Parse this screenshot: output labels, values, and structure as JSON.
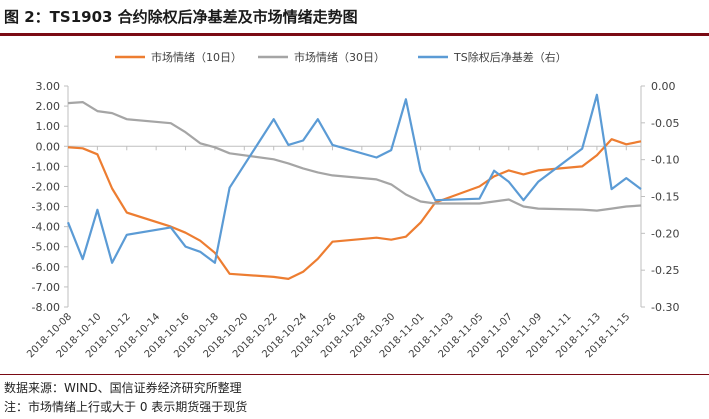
{
  "figure": {
    "title": "图 2：TS1903 合约除权后净基差及市场情绪走势图",
    "source_note": "数据来源：WIND、国信证券经济研究所整理",
    "footnote": "注：市场情绪上行或大于 0 表示期货强于现货"
  },
  "chart_data": {
    "type": "line",
    "title": "",
    "xlabel": "",
    "ylabel_left": "",
    "ylabel_right": "",
    "ylim_left": [
      -8,
      3
    ],
    "ylim_right": [
      -0.3,
      0.0
    ],
    "yticks_left": [
      "3.00",
      "2.00",
      "1.00",
      "0.00",
      "-1.00",
      "-2.00",
      "-3.00",
      "-4.00",
      "-5.00",
      "-6.00",
      "-7.00",
      "-8.00"
    ],
    "yticks_right": [
      "0.00",
      "-0.05",
      "-0.10",
      "-0.15",
      "-0.20",
      "-0.25",
      "-0.30"
    ],
    "x_tick_labels": [
      "2018-10-08",
      "2018-10-10",
      "2018-10-12",
      "2018-10-14",
      "2018-10-16",
      "2018-10-18",
      "2018-10-20",
      "2018-10-22",
      "2018-10-24",
      "2018-10-26",
      "2018-10-28",
      "2018-10-30",
      "2018-11-01",
      "2018-11-03",
      "2018-11-05",
      "2018-11-07",
      "2018-11-09",
      "2018-11-11",
      "2018-11-13",
      "2018-11-15"
    ],
    "grid": false,
    "legend_position": "top",
    "series": [
      {
        "name": "市场情绪（10日）",
        "axis": "left",
        "color": "#ED7D31",
        "x": [
          "2018-10-08",
          "2018-10-09",
          "2018-10-10",
          "2018-10-11",
          "2018-10-12",
          "2018-10-15",
          "2018-10-16",
          "2018-10-17",
          "2018-10-18",
          "2018-10-19",
          "2018-10-22",
          "2018-10-23",
          "2018-10-24",
          "2018-10-25",
          "2018-10-26",
          "2018-10-29",
          "2018-10-30",
          "2018-10-31",
          "2018-11-01",
          "2018-11-02",
          "2018-11-05",
          "2018-11-06",
          "2018-11-07",
          "2018-11-08",
          "2018-11-09",
          "2018-11-12",
          "2018-11-13",
          "2018-11-14",
          "2018-11-15",
          "2018-11-16"
        ],
        "values": [
          -0.05,
          -0.1,
          -0.4,
          -2.1,
          -3.3,
          -4.0,
          -4.3,
          -4.7,
          -5.3,
          -6.35,
          -6.5,
          -6.6,
          -6.25,
          -5.6,
          -4.75,
          -4.55,
          -4.65,
          -4.5,
          -3.8,
          -2.8,
          -2.0,
          -1.5,
          -1.2,
          -1.4,
          -1.2,
          -1.0,
          -0.45,
          0.35,
          0.1,
          0.25
        ]
      },
      {
        "name": "市场情绪（30日）",
        "axis": "left",
        "color": "#A5A5A5",
        "x": [
          "2018-10-08",
          "2018-10-09",
          "2018-10-10",
          "2018-10-11",
          "2018-10-12",
          "2018-10-15",
          "2018-10-16",
          "2018-10-17",
          "2018-10-18",
          "2018-10-19",
          "2018-10-22",
          "2018-10-23",
          "2018-10-24",
          "2018-10-25",
          "2018-10-26",
          "2018-10-29",
          "2018-10-30",
          "2018-10-31",
          "2018-11-01",
          "2018-11-02",
          "2018-11-05",
          "2018-11-06",
          "2018-11-07",
          "2018-11-08",
          "2018-11-09",
          "2018-11-12",
          "2018-11-13",
          "2018-11-14",
          "2018-11-15",
          "2018-11-16"
        ],
        "values": [
          2.15,
          2.2,
          1.75,
          1.65,
          1.35,
          1.15,
          0.7,
          0.15,
          -0.05,
          -0.35,
          -0.65,
          -0.85,
          -1.1,
          -1.3,
          -1.45,
          -1.65,
          -1.9,
          -2.4,
          -2.75,
          -2.85,
          -2.85,
          -2.75,
          -2.65,
          -3.0,
          -3.1,
          -3.15,
          -3.2,
          -3.1,
          -3.0,
          -2.95
        ]
      },
      {
        "name": "TS除权后净基差（右）",
        "axis": "right",
        "color": "#5B9BD5",
        "x": [
          "2018-10-08",
          "2018-10-09",
          "2018-10-10",
          "2018-10-11",
          "2018-10-12",
          "2018-10-15",
          "2018-10-16",
          "2018-10-17",
          "2018-10-18",
          "2018-10-19",
          "2018-10-22",
          "2018-10-23",
          "2018-10-24",
          "2018-10-25",
          "2018-10-26",
          "2018-10-29",
          "2018-10-30",
          "2018-10-31",
          "2018-11-01",
          "2018-11-02",
          "2018-11-05",
          "2018-11-06",
          "2018-11-07",
          "2018-11-08",
          "2018-11-09",
          "2018-11-12",
          "2018-11-13",
          "2018-11-14",
          "2018-11-15",
          "2018-11-16"
        ],
        "values": [
          -0.185,
          -0.235,
          -0.168,
          -0.24,
          -0.202,
          -0.192,
          -0.218,
          -0.225,
          -0.24,
          -0.138,
          -0.045,
          -0.08,
          -0.074,
          -0.045,
          -0.08,
          -0.097,
          -0.087,
          -0.018,
          -0.115,
          -0.155,
          -0.153,
          -0.115,
          -0.13,
          -0.155,
          -0.13,
          -0.085,
          -0.012,
          -0.14,
          -0.125,
          -0.14
        ]
      }
    ]
  }
}
